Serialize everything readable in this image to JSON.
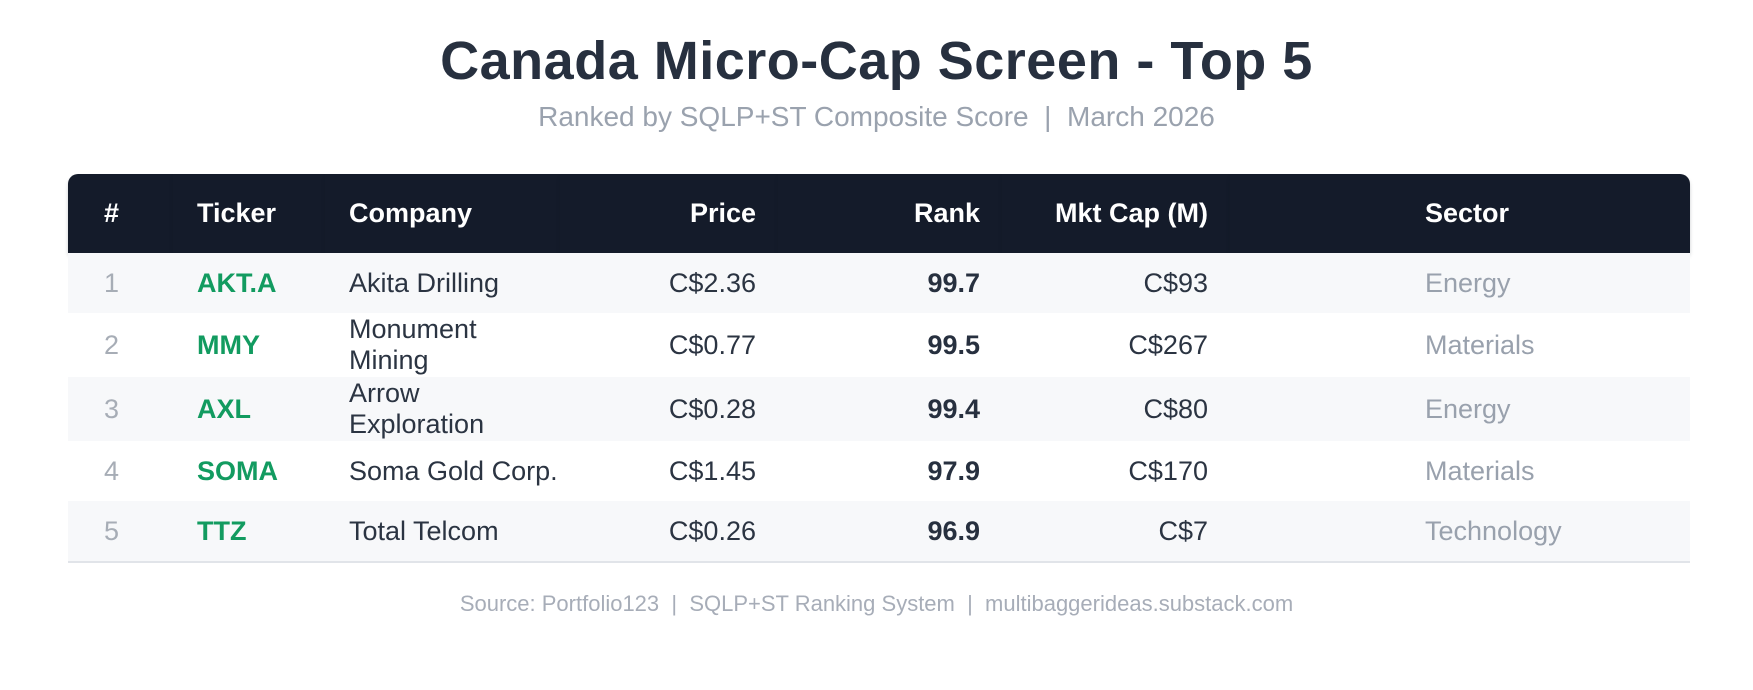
{
  "page": {
    "title": "Canada Micro-Cap Screen - Top 5",
    "subtitle": "Ranked by SQLP+ST Composite Score  |  March 2026",
    "footer": "Source: Portfolio123  |  SQLP+ST Ranking System  |  multibaggerideas.substack.com"
  },
  "table": {
    "columns": [
      {
        "key": "num",
        "label": "#",
        "align": "left"
      },
      {
        "key": "ticker",
        "label": "Ticker",
        "align": "left"
      },
      {
        "key": "company",
        "label": "Company",
        "align": "left"
      },
      {
        "key": "price",
        "label": "Price",
        "align": "right"
      },
      {
        "key": "rank",
        "label": "Rank",
        "align": "right"
      },
      {
        "key": "mktcap",
        "label": "Mkt Cap (M)",
        "align": "right"
      },
      {
        "key": "sector",
        "label": "Sector",
        "align": "left"
      }
    ],
    "rows": [
      {
        "num": "1",
        "ticker": "AKT.A",
        "company": "Akita Drilling",
        "price": "C$2.36",
        "rank": "99.7",
        "mktcap": "C$93",
        "sector": "Energy"
      },
      {
        "num": "2",
        "ticker": "MMY",
        "company": "Monument Mining",
        "price": "C$0.77",
        "rank": "99.5",
        "mktcap": "C$267",
        "sector": "Materials"
      },
      {
        "num": "3",
        "ticker": "AXL",
        "company": "Arrow Exploration",
        "price": "C$0.28",
        "rank": "99.4",
        "mktcap": "C$80",
        "sector": "Energy"
      },
      {
        "num": "4",
        "ticker": "SOMA",
        "company": "Soma Gold Corp.",
        "price": "C$1.45",
        "rank": "97.9",
        "mktcap": "C$170",
        "sector": "Materials"
      },
      {
        "num": "5",
        "ticker": "TTZ",
        "company": "Total Telcom",
        "price": "C$0.26",
        "rank": "96.9",
        "mktcap": "C$7",
        "sector": "Technology"
      }
    ]
  },
  "colors": {
    "header_bg": "#141b2a",
    "title_text": "#27303f",
    "ticker_green": "#129b60",
    "muted_gray": "#99a1ad",
    "row_alt_bg": "#f7f8fa",
    "body_text": "#2b3442"
  },
  "chart_data": {
    "type": "table",
    "title": "Canada Micro-Cap Screen - Top 5",
    "subtitle": "Ranked by SQLP+ST Composite Score | March 2026",
    "columns": [
      "#",
      "Ticker",
      "Company",
      "Price",
      "Rank",
      "Mkt Cap (M)",
      "Sector"
    ],
    "rows": [
      [
        "1",
        "AKT.A",
        "Akita Drilling",
        "C$2.36",
        "99.7",
        "C$93",
        "Energy"
      ],
      [
        "2",
        "MMY",
        "Monument Mining",
        "C$0.77",
        "99.5",
        "C$267",
        "Materials"
      ],
      [
        "3",
        "AXL",
        "Arrow Exploration",
        "C$0.28",
        "99.4",
        "C$80",
        "Energy"
      ],
      [
        "4",
        "SOMA",
        "Soma Gold Corp.",
        "C$1.45",
        "97.9",
        "C$170",
        "Materials"
      ],
      [
        "5",
        "TTZ",
        "Total Telcom",
        "C$0.26",
        "96.9",
        "C$7",
        "Technology"
      ]
    ],
    "ranks_numeric": [
      99.7,
      99.5,
      99.4,
      97.9,
      96.9
    ],
    "prices_cad": [
      2.36,
      0.77,
      0.28,
      1.45,
      0.26
    ],
    "mktcap_millions_cad": [
      93,
      267,
      80,
      170,
      7
    ],
    "source": "Source: Portfolio123 | SQLP+ST Ranking System | multibaggerideas.substack.com"
  }
}
